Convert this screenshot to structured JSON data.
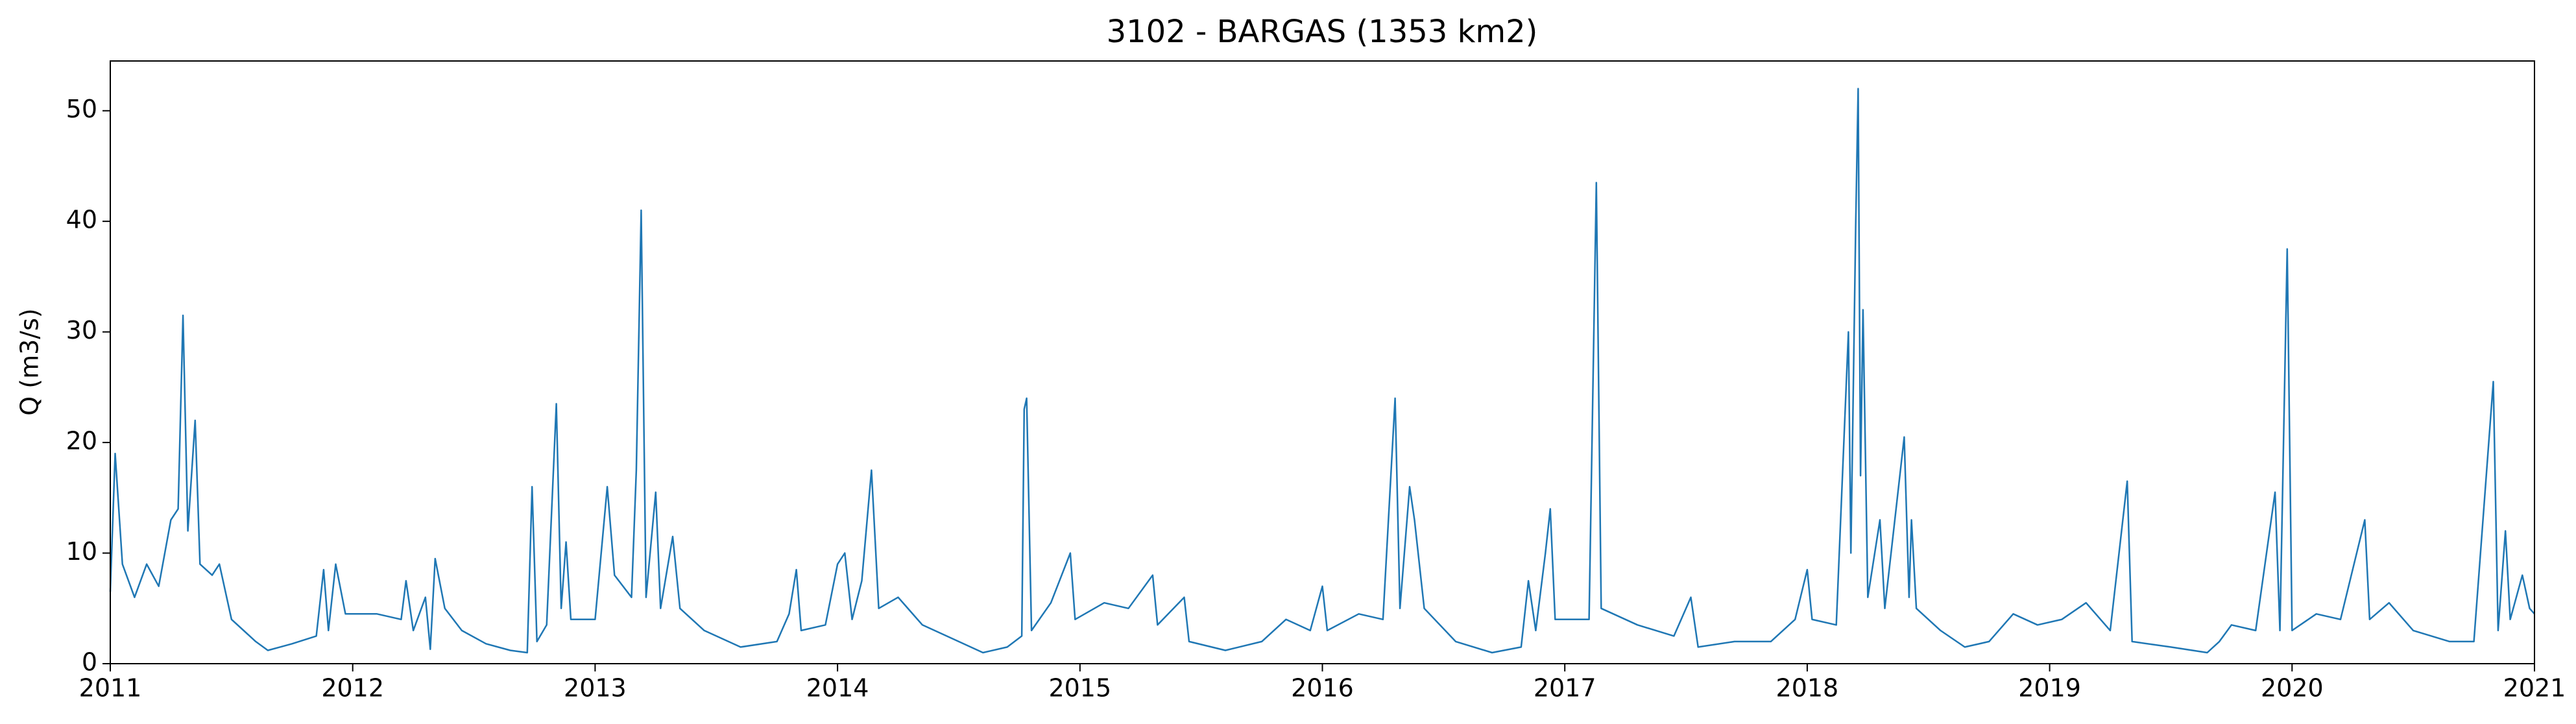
{
  "chart_data": {
    "type": "line",
    "title": "3102 - BARGAS (1353 km2)",
    "ylabel": "Q (m3/s)",
    "x": [
      2011.0,
      2011.02,
      2011.05,
      2011.1,
      2011.15,
      2011.2,
      2011.25,
      2011.28,
      2011.3,
      2011.32,
      2011.35,
      2011.37,
      2011.42,
      2011.45,
      2011.5,
      2011.6,
      2011.65,
      2011.7,
      2011.75,
      2011.85,
      2011.88,
      2011.9,
      2011.93,
      2011.97,
      2012.1,
      2012.2,
      2012.22,
      2012.25,
      2012.3,
      2012.32,
      2012.34,
      2012.38,
      2012.45,
      2012.55,
      2012.65,
      2012.72,
      2012.74,
      2012.76,
      2012.8,
      2012.84,
      2012.86,
      2012.88,
      2012.9,
      2013.0,
      2013.05,
      2013.08,
      2013.15,
      2013.17,
      2013.19,
      2013.21,
      2013.25,
      2013.27,
      2013.32,
      2013.35,
      2013.45,
      2013.6,
      2013.75,
      2013.8,
      2013.83,
      2013.85,
      2013.95,
      2014.0,
      2014.03,
      2014.06,
      2014.1,
      2014.14,
      2014.17,
      2014.25,
      2014.35,
      2014.5,
      2014.6,
      2014.7,
      2014.76,
      2014.77,
      2014.78,
      2014.8,
      2014.88,
      2014.96,
      2014.98,
      2015.1,
      2015.2,
      2015.3,
      2015.32,
      2015.43,
      2015.45,
      2015.6,
      2015.75,
      2015.85,
      2015.95,
      2016.0,
      2016.02,
      2016.15,
      2016.25,
      2016.3,
      2016.32,
      2016.36,
      2016.38,
      2016.42,
      2016.55,
      2016.7,
      2016.82,
      2016.85,
      2016.88,
      2016.92,
      2016.94,
      2016.96,
      2017.1,
      2017.13,
      2017.15,
      2017.3,
      2017.45,
      2017.52,
      2017.55,
      2017.7,
      2017.85,
      2017.95,
      2018.0,
      2018.02,
      2018.12,
      2018.17,
      2018.18,
      2018.2,
      2018.21,
      2018.22,
      2018.23,
      2018.25,
      2018.3,
      2018.32,
      2018.4,
      2018.42,
      2018.43,
      2018.45,
      2018.55,
      2018.65,
      2018.75,
      2018.85,
      2018.95,
      2019.05,
      2019.15,
      2019.25,
      2019.32,
      2019.34,
      2019.5,
      2019.65,
      2019.7,
      2019.75,
      2019.85,
      2019.93,
      2019.95,
      2019.98,
      2020.0,
      2020.1,
      2020.2,
      2020.3,
      2020.32,
      2020.4,
      2020.5,
      2020.65,
      2020.75,
      2020.83,
      2020.85,
      2020.88,
      2020.9,
      2020.95,
      2020.98,
      2021.0
    ],
    "series": [
      {
        "color": "#1f77b4",
        "values": [
          6.5,
          19,
          9,
          6,
          9,
          7,
          13,
          14,
          31.5,
          12,
          22,
          9,
          8,
          9,
          4,
          2,
          1.2,
          1.5,
          1.8,
          2.5,
          8.5,
          3,
          9,
          4.5,
          4.5,
          4,
          7.5,
          3,
          6,
          1.3,
          9.5,
          5,
          3,
          1.8,
          1.2,
          1.0,
          16,
          2,
          3.5,
          23.5,
          5,
          11,
          4,
          4,
          16,
          8,
          6,
          17.5,
          41,
          6,
          15.5,
          5,
          11.5,
          5,
          3,
          1.5,
          2,
          4.5,
          8.5,
          3,
          3.5,
          9,
          10,
          4,
          7.5,
          17.5,
          5,
          6,
          3.5,
          2,
          1,
          1.5,
          2.5,
          23,
          24,
          3,
          5.5,
          10,
          4,
          5.5,
          5,
          8,
          3.5,
          6,
          2,
          1.2,
          2,
          4,
          3,
          7,
          3,
          4.5,
          4,
          24,
          5,
          16,
          13,
          5,
          2,
          1,
          1.5,
          7.5,
          3,
          10,
          14,
          4,
          4,
          43.5,
          5,
          3.5,
          2.5,
          6,
          1.5,
          2,
          2,
          4,
          8.5,
          4,
          3.5,
          30,
          10,
          39.5,
          52,
          17,
          32,
          6,
          13,
          5,
          20.5,
          6,
          13,
          5,
          3,
          1.5,
          2,
          4.5,
          3.5,
          4,
          5.5,
          3,
          16.5,
          2,
          1.5,
          1,
          2,
          3.5,
          3,
          15.5,
          3,
          37.5,
          3,
          4.5,
          4,
          13,
          4,
          5.5,
          3,
          2,
          2,
          25.5,
          3,
          12,
          4,
          8,
          5,
          4.5
        ]
      }
    ],
    "xlim": [
      2011,
      2021
    ],
    "xticks": [
      2011,
      2012,
      2013,
      2014,
      2015,
      2016,
      2017,
      2018,
      2019,
      2020,
      2021
    ],
    "ylim": [
      0,
      54.5
    ],
    "yticks": [
      0,
      10,
      20,
      30,
      40,
      50
    ]
  }
}
